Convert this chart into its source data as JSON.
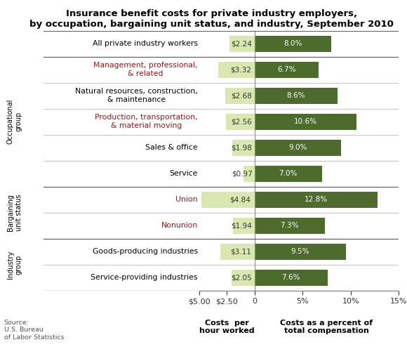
{
  "title": "Insurance benefit costs for private industry employers,\nby occupation, bargaining unit status, and industry, September 2010",
  "categories": [
    "All private industry workers",
    "Management, professional,\n& related",
    "Natural resources, construction,\n& maintenance",
    "Production, transportation,\n& material moving",
    "Sales & office",
    "Service",
    "Union",
    "Nonunion",
    "Goods-producing industries",
    "Service-providing industries"
  ],
  "costs_per_hour": [
    2.24,
    3.32,
    2.68,
    2.56,
    1.98,
    0.97,
    4.84,
    1.94,
    3.11,
    2.05
  ],
  "costs_pct": [
    8.0,
    6.7,
    8.6,
    10.6,
    9.0,
    7.0,
    12.8,
    7.3,
    9.5,
    7.6
  ],
  "cost_labels": [
    "$2.24",
    "$3.32",
    "$2.68",
    "$2.56",
    "$1.98",
    "$0.97",
    "$4.84",
    "$1.94",
    "$3.11",
    "$2.05"
  ],
  "pct_labels": [
    "8.0%",
    "6.7%",
    "8.6%",
    "10.6%",
    "9.0%",
    "7.0%",
    "12.8%",
    "7.3%",
    "9.5%",
    "7.6%"
  ],
  "bar_color_light": "#d9e8b0",
  "bar_color_dark": "#4d6b2c",
  "cat_colors": [
    "#000000",
    "#8b1a1a",
    "#000000",
    "#8b1a1a",
    "#000000",
    "#000000",
    "#8b1a1a",
    "#8b1a1a",
    "#000000",
    "#000000"
  ],
  "xlabel_left": "Costs  per\nhour worked",
  "xlabel_right": "Costs as a percent of\ntotal compensation",
  "source": "Source:\nU.S. Bureau\nof Labor Statistics",
  "xlim_left": 5.0,
  "xlim_right": 15.0,
  "background_color": "#ffffff",
  "occ_group_rows": [
    1,
    2,
    3,
    4,
    5
  ],
  "barg_group_rows": [
    6,
    7
  ],
  "ind_group_rows": [
    8,
    9
  ],
  "group_separator_after": [
    0,
    5,
    7
  ],
  "thin_separator_rows": [
    1,
    2,
    3,
    4,
    6,
    8
  ]
}
